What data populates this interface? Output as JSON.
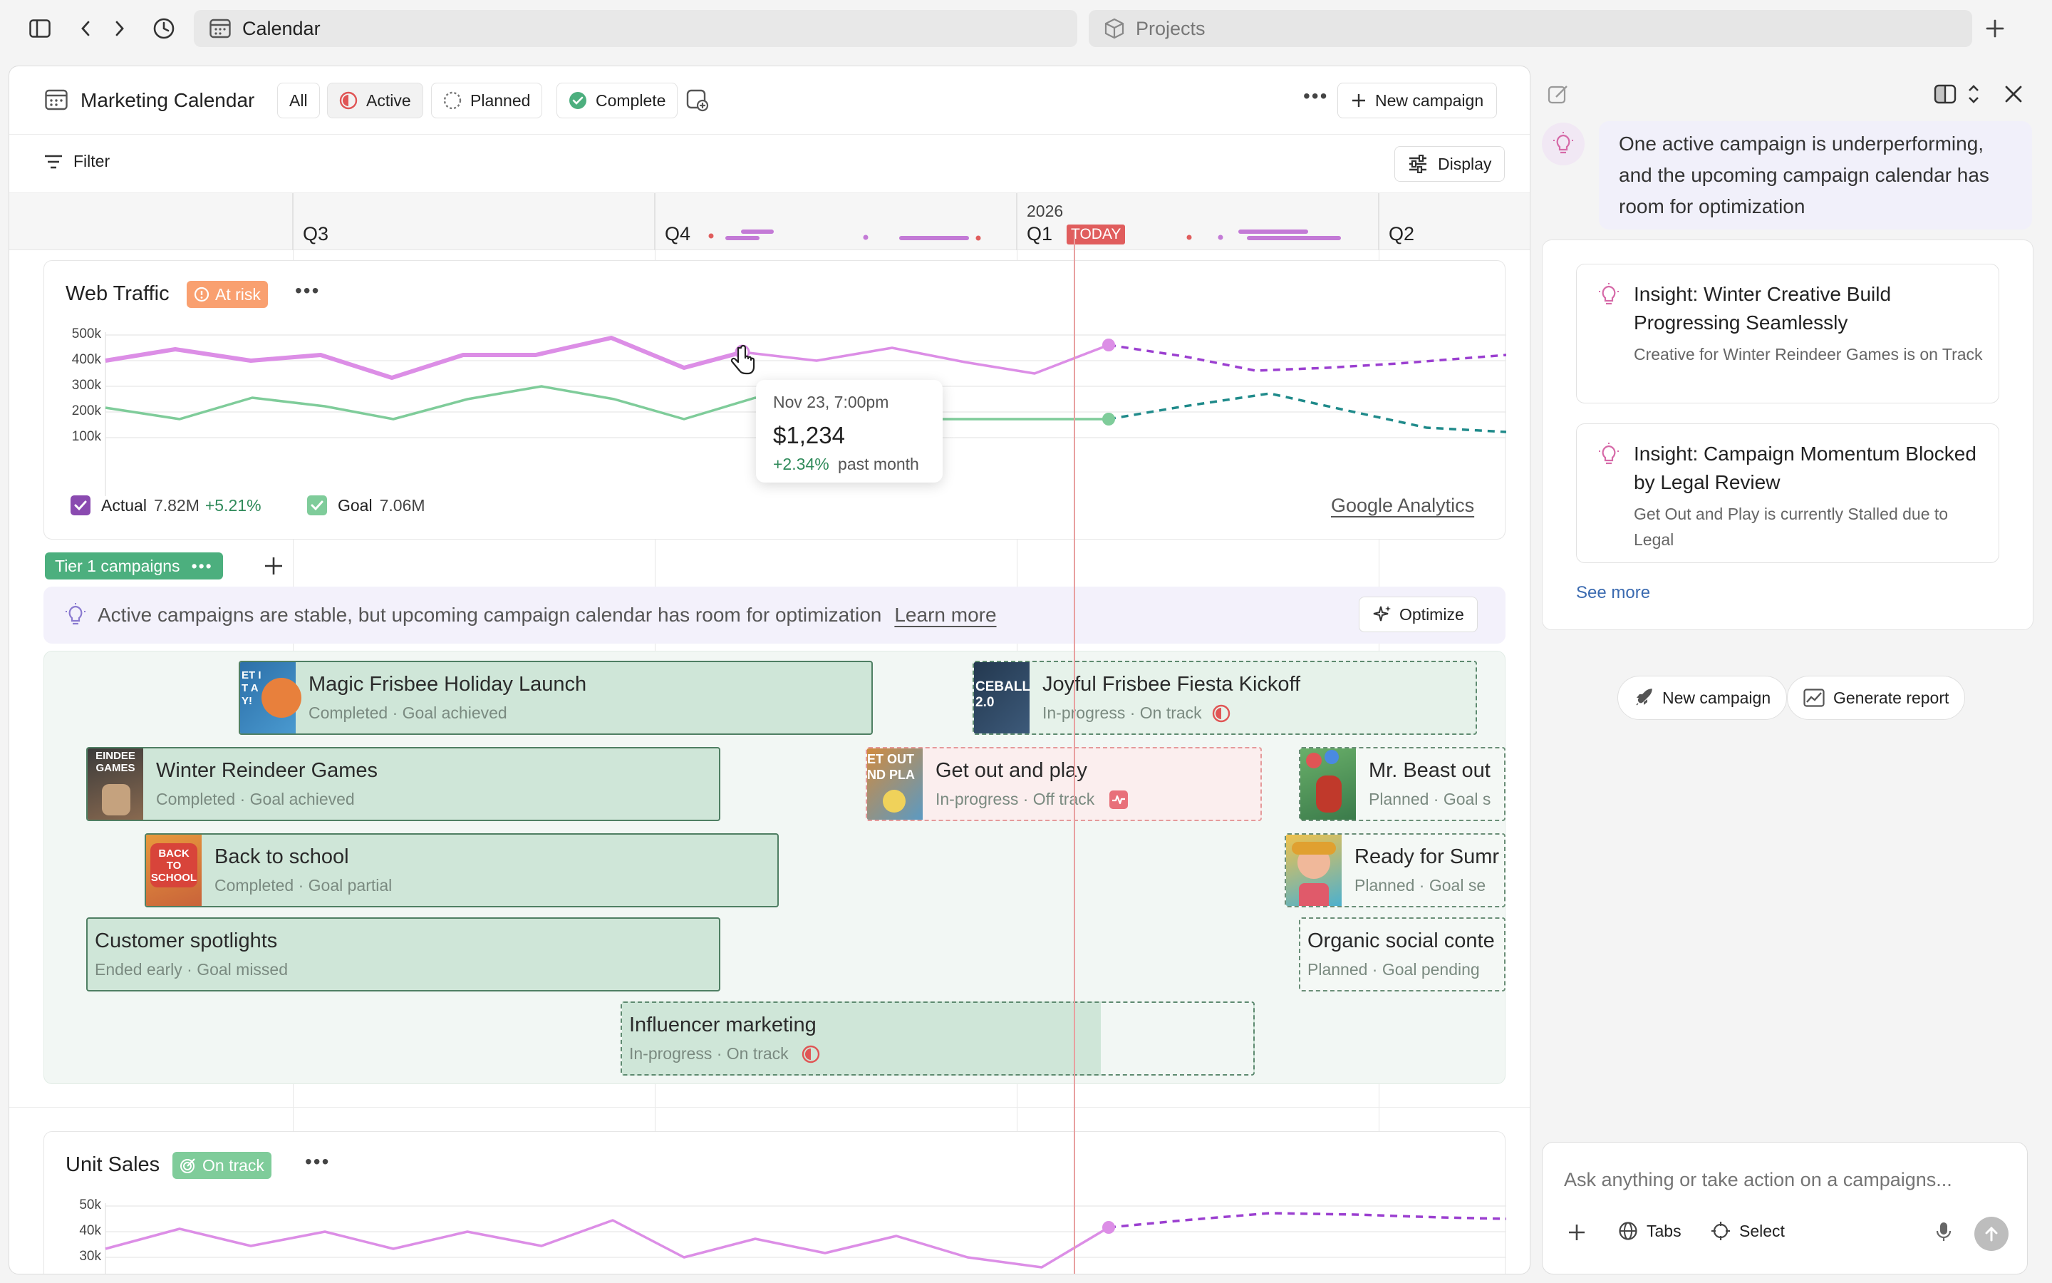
{
  "browser": {
    "tabs": [
      {
        "label": "Calendar",
        "icon": "calendar-icon"
      },
      {
        "label": "Projects",
        "icon": "cube-icon"
      }
    ]
  },
  "header": {
    "title": "Marketing Calendar",
    "chips": [
      {
        "label": "All"
      },
      {
        "label": "Active"
      },
      {
        "label": "Planned"
      },
      {
        "label": "Complete"
      }
    ],
    "new_campaign": "New campaign"
  },
  "filter_bar": {
    "filter": "Filter",
    "display": "Display"
  },
  "timeline": {
    "year": "2026",
    "quarters": [
      "Q3",
      "Q4",
      "Q1",
      "Q2"
    ],
    "today": "TODAY"
  },
  "web_traffic": {
    "title": "Web Traffic",
    "badge": "At risk",
    "yticks": [
      "500k",
      "400k",
      "300k",
      "200k",
      "100k"
    ],
    "legend": {
      "actual_label": "Actual",
      "actual_value": "7.82M",
      "actual_delta": "+5.21%",
      "goal_label": "Goal",
      "goal_value": "7.06M"
    },
    "source": "Google Analytics",
    "tooltip": {
      "time": "Nov 23, 7:00pm",
      "value": "$1,234",
      "delta": "+2.34%",
      "delta_label": "past month"
    },
    "colors": {
      "actual": "#dc8ee6",
      "goal": "#7fcc9a",
      "forecast_actual": "#9b3fd0",
      "forecast_goal": "#1f8a8a"
    }
  },
  "tier": {
    "label": "Tier 1 campaigns"
  },
  "insight_bar": {
    "text": "Active campaigns are stable, but upcoming campaign calendar has room for optimization",
    "learn_more": "Learn more",
    "optimize": "Optimize"
  },
  "campaigns": [
    {
      "name": "Magic Frisbee Holiday Launch",
      "status": "Completed · Goal achieved",
      "thumb_text": "ET IT AY!"
    },
    {
      "name": "Joyful Frisbee Fiesta Kickoff",
      "status": "In-progress · On track",
      "thumb_text": "CEBALL 2.0"
    },
    {
      "name": "Winter Reindeer Games",
      "status": "Completed · Goal achieved",
      "thumb_text": "EINDEE GAMES"
    },
    {
      "name": "Get out and play",
      "status": "In-progress · Off track",
      "thumb_text": "ET OUT ND PLA"
    },
    {
      "name": "Mr. Beast out",
      "status": "Planned · Goal s"
    },
    {
      "name": "Back to school",
      "status": "Completed · Goal partial",
      "thumb_text": "BACK TO SCHOOL"
    },
    {
      "name": "Ready for Sumr",
      "status": "Planned · Goal se"
    },
    {
      "name": "Customer spotlights",
      "status": "Ended early · Goal missed"
    },
    {
      "name": "Organic social conte",
      "status": "Planned · Goal pending"
    },
    {
      "name": "Influencer marketing",
      "status": "In-progress · On track"
    }
  ],
  "unit_sales": {
    "title": "Unit Sales",
    "badge": "On track",
    "yticks": [
      "50k",
      "40k",
      "30k"
    ]
  },
  "assistant": {
    "message": "One active campaign is underperforming, and the upcoming campaign calendar has room for optimization",
    "insights": [
      {
        "title": "Insight: Winter Creative Build Progressing Seamlessly",
        "body": "Creative for Winter Reindeer Games is on Track"
      },
      {
        "title": "Insight: Campaign Momentum Blocked by Legal Review",
        "body": "Get Out and Play is currently Stalled due to Legal"
      }
    ],
    "see_more": "See more",
    "actions": [
      {
        "label": "New campaign",
        "icon": "rocket-icon"
      },
      {
        "label": "Generate report",
        "icon": "chart-icon"
      }
    ],
    "input": {
      "placeholder": "Ask anything or take action on a campaigns..."
    },
    "input_tools": [
      {
        "label": "Tabs",
        "icon": "globe-icon"
      },
      {
        "label": "Select",
        "icon": "crosshair-icon"
      }
    ]
  }
}
